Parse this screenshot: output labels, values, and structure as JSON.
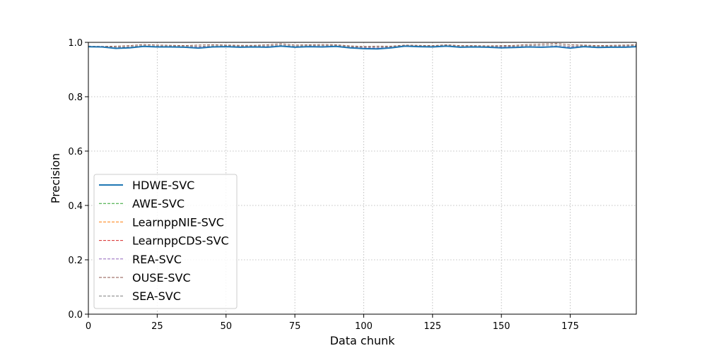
{
  "chart_data": {
    "type": "line",
    "title": "",
    "xlabel": "Data chunk",
    "ylabel": "Precision",
    "xlim": [
      0,
      199
    ],
    "ylim": [
      0.0,
      1.0
    ],
    "xticks": [
      0,
      25,
      50,
      75,
      100,
      125,
      150,
      175
    ],
    "yticks": [
      0.0,
      0.2,
      0.4,
      0.6,
      0.8,
      1.0
    ],
    "ytick_labels": [
      "0.0",
      "0.2",
      "0.4",
      "0.6",
      "0.8",
      "1.0"
    ],
    "grid": true,
    "legend_position": "lower-left",
    "x": [
      0,
      5,
      10,
      15,
      20,
      25,
      30,
      35,
      40,
      45,
      50,
      55,
      60,
      65,
      70,
      75,
      80,
      85,
      90,
      95,
      100,
      105,
      110,
      115,
      120,
      125,
      130,
      135,
      140,
      145,
      150,
      155,
      160,
      165,
      170,
      175,
      180,
      185,
      190,
      195,
      199
    ],
    "series": [
      {
        "name": "HDWE-SVC",
        "color": "#1f77b4",
        "style": "solid",
        "values": [
          0.984,
          0.983,
          0.978,
          0.98,
          0.985,
          0.983,
          0.983,
          0.982,
          0.979,
          0.983,
          0.984,
          0.982,
          0.983,
          0.982,
          0.986,
          0.982,
          0.984,
          0.983,
          0.985,
          0.98,
          0.977,
          0.976,
          0.98,
          0.986,
          0.984,
          0.983,
          0.986,
          0.982,
          0.983,
          0.982,
          0.98,
          0.981,
          0.983,
          0.982,
          0.984,
          0.979,
          0.984,
          0.981,
          0.982,
          0.982,
          0.984
        ]
      },
      {
        "name": "AWE-SVC",
        "color": "#2ca02c",
        "style": "dashed",
        "values": [
          0.984,
          0.983,
          0.979,
          0.981,
          0.985,
          0.983,
          0.983,
          0.982,
          0.98,
          0.983,
          0.984,
          0.982,
          0.983,
          0.982,
          0.986,
          0.982,
          0.984,
          0.983,
          0.985,
          0.981,
          0.978,
          0.977,
          0.98,
          0.986,
          0.984,
          0.983,
          0.986,
          0.982,
          0.983,
          0.982,
          0.981,
          0.981,
          0.983,
          0.982,
          0.984,
          0.98,
          0.984,
          0.981,
          0.982,
          0.982,
          0.984
        ]
      },
      {
        "name": "LearnppNIE-SVC",
        "color": "#ff7f0e",
        "style": "dashed",
        "values": [
          0.985,
          0.984,
          0.979,
          0.981,
          0.986,
          0.984,
          0.984,
          0.983,
          0.98,
          0.984,
          0.985,
          0.983,
          0.984,
          0.983,
          0.987,
          0.983,
          0.985,
          0.984,
          0.986,
          0.981,
          0.978,
          0.977,
          0.981,
          0.987,
          0.985,
          0.984,
          0.987,
          0.983,
          0.984,
          0.983,
          0.981,
          0.982,
          0.984,
          0.983,
          0.985,
          0.98,
          0.985,
          0.982,
          0.983,
          0.983,
          0.985
        ]
      },
      {
        "name": "LearnppCDS-SVC",
        "color": "#d62728",
        "style": "dashed",
        "values": [
          0.985,
          0.984,
          0.98,
          0.982,
          0.986,
          0.984,
          0.984,
          0.983,
          0.981,
          0.984,
          0.985,
          0.983,
          0.984,
          0.983,
          0.987,
          0.983,
          0.985,
          0.984,
          0.986,
          0.982,
          0.979,
          0.978,
          0.981,
          0.987,
          0.985,
          0.984,
          0.987,
          0.983,
          0.984,
          0.983,
          0.982,
          0.982,
          0.984,
          0.983,
          0.985,
          0.981,
          0.985,
          0.982,
          0.983,
          0.983,
          0.985
        ]
      },
      {
        "name": "REA-SVC",
        "color": "#9467bd",
        "style": "dashed",
        "values": [
          0.986,
          0.985,
          0.981,
          0.983,
          0.987,
          0.985,
          0.985,
          0.984,
          0.982,
          0.985,
          0.986,
          0.984,
          0.985,
          0.984,
          0.988,
          0.984,
          0.986,
          0.985,
          0.987,
          0.983,
          0.98,
          0.979,
          0.982,
          0.988,
          0.986,
          0.985,
          0.988,
          0.984,
          0.985,
          0.984,
          0.983,
          0.983,
          0.985,
          0.984,
          0.986,
          0.982,
          0.986,
          0.983,
          0.984,
          0.984,
          0.986
        ]
      },
      {
        "name": "OUSE-SVC",
        "color": "#8c564b",
        "style": "dashed",
        "values": [
          0.986,
          0.985,
          0.986,
          0.988,
          0.992,
          0.99,
          0.989,
          0.988,
          0.99,
          0.991,
          0.99,
          0.989,
          0.989,
          0.991,
          0.995,
          0.99,
          0.991,
          0.992,
          0.991,
          0.987,
          0.985,
          0.986,
          0.986,
          0.99,
          0.989,
          0.988,
          0.991,
          0.988,
          0.988,
          0.987,
          0.988,
          0.989,
          0.992,
          0.994,
          0.996,
          0.991,
          0.99,
          0.988,
          0.989,
          0.99,
          0.991
        ]
      },
      {
        "name": "SEA-SVC",
        "color": "#7f7f7f",
        "style": "dashed",
        "values": [
          0.985,
          0.984,
          0.982,
          0.984,
          0.988,
          0.986,
          0.986,
          0.985,
          0.985,
          0.987,
          0.987,
          0.986,
          0.986,
          0.987,
          0.99,
          0.986,
          0.988,
          0.988,
          0.988,
          0.984,
          0.982,
          0.982,
          0.984,
          0.988,
          0.987,
          0.986,
          0.989,
          0.985,
          0.986,
          0.985,
          0.985,
          0.986,
          0.988,
          0.989,
          0.99,
          0.986,
          0.987,
          0.985,
          0.986,
          0.987,
          0.988
        ]
      }
    ]
  }
}
